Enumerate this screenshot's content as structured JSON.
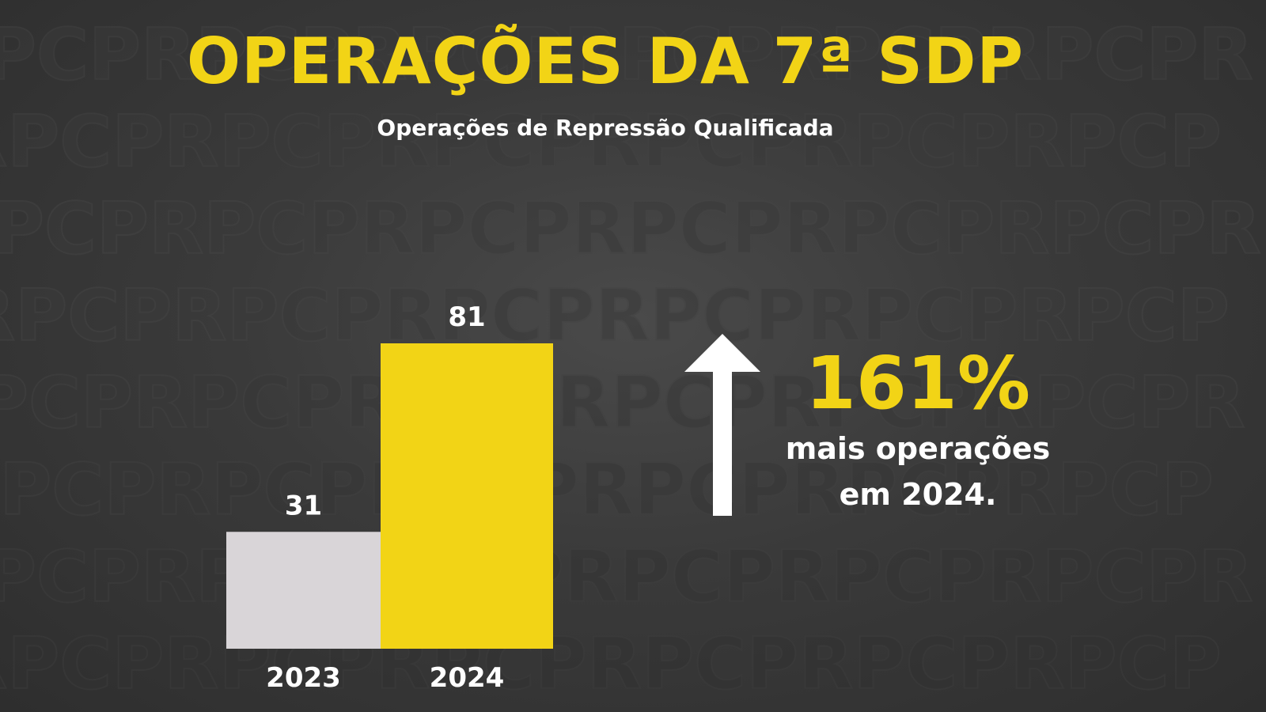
{
  "header": {
    "title": "OPERAÇÕES DA 7ª SDP",
    "subtitle": "Operações de Repressão Qualificada"
  },
  "highlight": {
    "percent": "161%",
    "line1": "mais operações",
    "line2": "em 2024.",
    "icon": "arrow-up-icon"
  },
  "colors": {
    "accent": "#f2d416",
    "bar_2023": "#d9d5d8",
    "bar_2024": "#f2d416",
    "text": "#ffffff"
  },
  "chart_data": {
    "type": "bar",
    "categories": [
      "2023",
      "2024"
    ],
    "values": [
      31,
      81
    ],
    "title": "",
    "xlabel": "",
    "ylabel": "",
    "ylim": [
      0,
      81
    ],
    "grid": false,
    "legend": "none"
  }
}
